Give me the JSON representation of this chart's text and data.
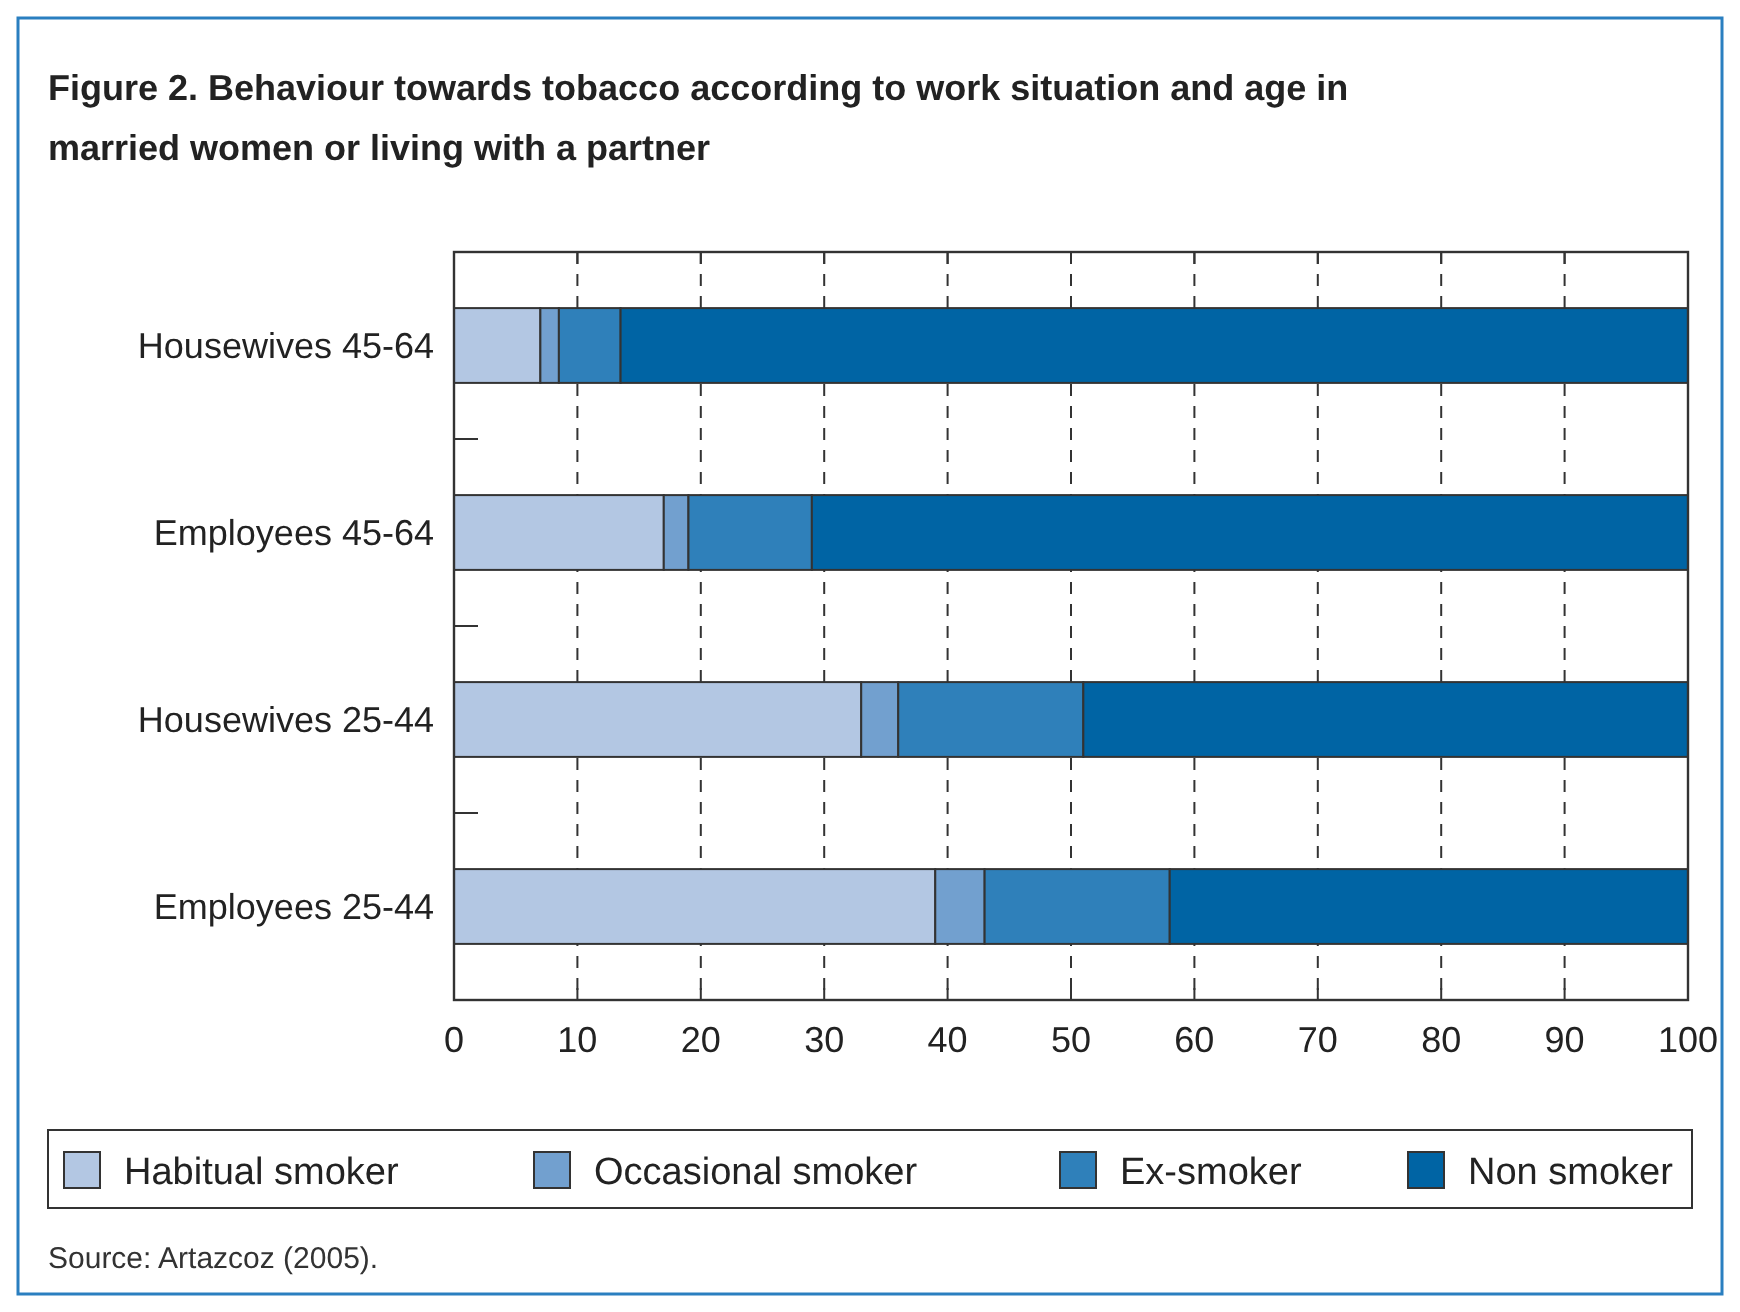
{
  "chart_data": {
    "type": "bar",
    "orientation": "horizontal",
    "stacked": true,
    "title": "Figure 2.   Behaviour towards tobacco according to work situation and age in married women or living with a partner",
    "categories": [
      "Housewives 45-64",
      "Employees 45-64",
      "Housewives 25-44",
      "Employees 25-44"
    ],
    "series": [
      {
        "name": "Habitual smoker",
        "color": "#b3c7e3",
        "values": [
          7,
          17,
          33,
          39
        ]
      },
      {
        "name": "Occasional smoker",
        "color": "#72a0cf",
        "values": [
          1.5,
          2,
          3,
          4
        ]
      },
      {
        "name": "Ex-smoker",
        "color": "#2f80ba",
        "values": [
          5,
          10,
          15,
          15
        ]
      },
      {
        "name": "Non smoker",
        "color": "#0064a4",
        "values": [
          86.5,
          71,
          49,
          42
        ]
      }
    ],
    "xlim": [
      0,
      100
    ],
    "xticks": [
      0,
      10,
      20,
      30,
      40,
      50,
      60,
      70,
      80,
      90,
      100
    ],
    "grid": "x",
    "legend": "bottom",
    "annotations": [
      "Source: Artazcoz (2005)."
    ]
  }
}
